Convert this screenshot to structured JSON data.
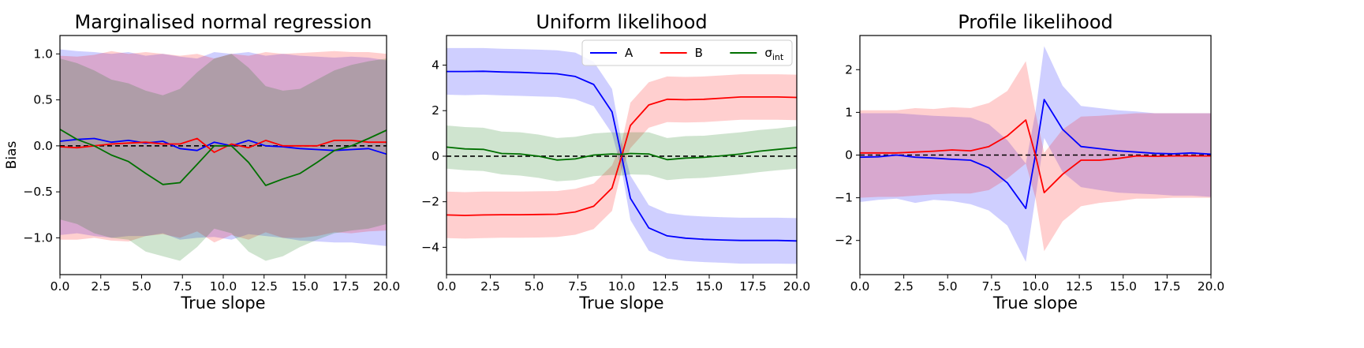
{
  "chart_data": [
    {
      "type": "line",
      "title": "Marginalised normal regression",
      "xlabel": "True slope",
      "ylabel": "Bias",
      "xlim": [
        0,
        20
      ],
      "ylim": [
        -1.4,
        1.2
      ],
      "xticks": [
        "0.0",
        "2.5",
        "5.0",
        "7.5",
        "10.0",
        "12.5",
        "15.0",
        "17.5",
        "20.0"
      ],
      "yticks": [
        "-1.0",
        "-0.5",
        "0.0",
        "0.5",
        "1.0"
      ],
      "legend": false,
      "reference_line": 0,
      "x": [
        0,
        1.05,
        2.1,
        3.15,
        4.2,
        5.25,
        6.3,
        7.35,
        8.4,
        9.45,
        10.5,
        11.55,
        12.6,
        13.65,
        14.7,
        15.75,
        16.8,
        17.85,
        18.9,
        20
      ],
      "series": [
        {
          "color": "#0000ff",
          "values": [
            0.05,
            0.07,
            0.08,
            0.04,
            0.06,
            0.03,
            0.05,
            -0.03,
            -0.05,
            0.04,
            0.0,
            0.06,
            0.0,
            -0.01,
            -0.03,
            -0.04,
            -0.05,
            -0.04,
            -0.03,
            -0.09
          ],
          "lower": [
            -0.97,
            -0.95,
            -0.98,
            -1.0,
            -0.98,
            -0.98,
            -0.95,
            -1.02,
            -1.0,
            -0.99,
            -1.02,
            -0.96,
            -0.98,
            -1.0,
            -1.03,
            -1.04,
            -1.05,
            -1.05,
            -1.07,
            -1.09
          ],
          "upper": [
            1.05,
            1.03,
            1.02,
            1.0,
            1.02,
            0.98,
            1.0,
            0.97,
            0.95,
            1.02,
            1.0,
            1.02,
            0.98,
            1.0,
            0.98,
            0.97,
            0.96,
            0.97,
            0.96,
            0.93
          ]
        },
        {
          "color": "#ff0000",
          "values": [
            -0.01,
            -0.02,
            0.0,
            0.02,
            0.03,
            0.04,
            0.02,
            0.02,
            0.08,
            -0.07,
            0.02,
            -0.02,
            0.06,
            0.0,
            0.0,
            0.0,
            0.06,
            0.06,
            0.04,
            0.04
          ],
          "lower": [
            -1.02,
            -1.02,
            -1.0,
            -1.03,
            -1.04,
            -0.98,
            -0.96,
            -1.0,
            -0.93,
            -1.05,
            -0.97,
            -1.02,
            -0.94,
            -1.0,
            -1.0,
            -0.98,
            -0.94,
            -0.95,
            -0.93,
            -0.92
          ],
          "upper": [
            0.98,
            0.97,
            0.99,
            1.03,
            1.0,
            1.02,
            1.0,
            0.98,
            1.0,
            0.95,
            1.0,
            0.98,
            1.02,
            1.0,
            1.01,
            1.02,
            1.03,
            1.02,
            1.02,
            1.0
          ]
        },
        {
          "color": "#007000",
          "values": [
            0.18,
            0.07,
            0.0,
            -0.1,
            -0.17,
            -0.3,
            -0.42,
            -0.4,
            -0.2,
            0.0,
            0.0,
            -0.18,
            -0.43,
            -0.36,
            -0.3,
            -0.18,
            -0.05,
            0.0,
            0.08,
            0.17
          ],
          "lower": [
            -0.8,
            -0.85,
            -0.95,
            -1.0,
            -1.02,
            -1.15,
            -1.2,
            -1.25,
            -1.1,
            -0.9,
            -0.95,
            -1.15,
            -1.25,
            -1.2,
            -1.1,
            -1.02,
            -0.95,
            -0.92,
            -0.9,
            -0.85
          ],
          "upper": [
            0.95,
            0.9,
            0.82,
            0.72,
            0.68,
            0.6,
            0.55,
            0.62,
            0.8,
            0.95,
            1.0,
            0.85,
            0.65,
            0.6,
            0.62,
            0.72,
            0.82,
            0.88,
            0.92,
            0.95
          ]
        }
      ]
    },
    {
      "type": "line",
      "title": "Uniform likelihood",
      "xlabel": "True slope",
      "ylabel": "",
      "xlim": [
        0,
        20
      ],
      "ylim": [
        -5.2,
        5.3
      ],
      "xticks": [
        "0.0",
        "2.5",
        "5.0",
        "7.5",
        "10.0",
        "12.5",
        "15.0",
        "17.5",
        "20.0"
      ],
      "yticks": [
        "-4",
        "-2",
        "0",
        "2",
        "4"
      ],
      "legend": true,
      "legend_position": "top-right",
      "reference_line": 0,
      "x": [
        0,
        1.05,
        2.1,
        3.15,
        4.2,
        5.25,
        6.3,
        7.35,
        8.4,
        9.45,
        10.0,
        10.5,
        11.55,
        12.6,
        13.65,
        14.7,
        15.75,
        16.8,
        17.85,
        18.9,
        20
      ],
      "series": [
        {
          "name": "A",
          "color": "#0000ff",
          "values": [
            3.72,
            3.72,
            3.73,
            3.7,
            3.68,
            3.65,
            3.62,
            3.5,
            3.15,
            1.95,
            0.0,
            -1.85,
            -3.15,
            -3.5,
            -3.6,
            -3.65,
            -3.68,
            -3.7,
            -3.7,
            -3.7,
            -3.72
          ],
          "lower": [
            2.7,
            2.68,
            2.7,
            2.67,
            2.65,
            2.62,
            2.6,
            2.5,
            2.2,
            1.0,
            -0.6,
            -2.8,
            -4.15,
            -4.5,
            -4.6,
            -4.65,
            -4.68,
            -4.72,
            -4.72,
            -4.72,
            -4.73
          ],
          "upper": [
            4.75,
            4.75,
            4.75,
            4.72,
            4.7,
            4.68,
            4.65,
            4.55,
            4.15,
            2.95,
            0.6,
            -0.85,
            -2.15,
            -2.5,
            -2.6,
            -2.65,
            -2.68,
            -2.7,
            -2.7,
            -2.7,
            -2.72
          ]
        },
        {
          "name": "B",
          "color": "#ff0000",
          "values": [
            -2.58,
            -2.6,
            -2.58,
            -2.57,
            -2.57,
            -2.56,
            -2.55,
            -2.45,
            -2.2,
            -1.4,
            0.0,
            1.35,
            2.25,
            2.5,
            2.48,
            2.5,
            2.55,
            2.6,
            2.6,
            2.6,
            2.58
          ],
          "lower": [
            -3.6,
            -3.62,
            -3.6,
            -3.58,
            -3.58,
            -3.57,
            -3.55,
            -3.45,
            -3.2,
            -2.4,
            -0.6,
            0.35,
            1.25,
            1.5,
            1.48,
            1.5,
            1.55,
            1.6,
            1.6,
            1.6,
            1.58
          ],
          "upper": [
            -1.55,
            -1.58,
            -1.55,
            -1.55,
            -1.55,
            -1.54,
            -1.53,
            -1.43,
            -1.2,
            -0.4,
            0.6,
            2.35,
            3.25,
            3.5,
            3.48,
            3.5,
            3.55,
            3.6,
            3.6,
            3.6,
            3.58
          ]
        },
        {
          "name": "σint",
          "color": "#007000",
          "values": [
            0.4,
            0.32,
            0.3,
            0.12,
            0.1,
            0.0,
            -0.17,
            -0.12,
            0.05,
            0.1,
            0.08,
            0.12,
            0.1,
            -0.15,
            -0.08,
            -0.05,
            0.02,
            0.1,
            0.22,
            0.3,
            0.38
          ],
          "lower": [
            -0.55,
            -0.62,
            -0.65,
            -0.8,
            -0.85,
            -0.95,
            -1.1,
            -1.05,
            -0.88,
            -0.82,
            -0.85,
            -0.8,
            -0.82,
            -1.05,
            -0.98,
            -0.95,
            -0.88,
            -0.8,
            -0.7,
            -0.62,
            -0.55
          ],
          "upper": [
            1.35,
            1.28,
            1.25,
            1.08,
            1.05,
            0.95,
            0.8,
            0.85,
            1.0,
            1.05,
            1.02,
            1.05,
            1.05,
            0.8,
            0.88,
            0.9,
            0.98,
            1.05,
            1.15,
            1.22,
            1.32
          ]
        }
      ]
    },
    {
      "type": "line",
      "title": "Profile likelihood",
      "xlabel": "True slope",
      "ylabel": "",
      "xlim": [
        0,
        20
      ],
      "ylim": [
        -2.8,
        2.8
      ],
      "xticks": [
        "0.0",
        "2.5",
        "5.0",
        "7.5",
        "10.0",
        "12.5",
        "15.0",
        "17.5",
        "20.0"
      ],
      "yticks": [
        "-2",
        "-1",
        "0",
        "1",
        "2"
      ],
      "legend": false,
      "reference_line": 0,
      "x": [
        0,
        1.05,
        2.1,
        3.15,
        4.2,
        5.25,
        6.3,
        7.35,
        8.4,
        9.45,
        10.0,
        10.5,
        11.55,
        12.6,
        13.65,
        14.7,
        15.75,
        16.8,
        17.85,
        18.9,
        20
      ],
      "series": [
        {
          "color": "#0000ff",
          "values": [
            -0.05,
            -0.04,
            0.0,
            -0.05,
            -0.07,
            -0.1,
            -0.12,
            -0.3,
            -0.65,
            -1.25,
            0.0,
            1.3,
            0.6,
            0.2,
            0.15,
            0.1,
            0.07,
            0.04,
            0.03,
            0.05,
            0.02
          ],
          "lower": [
            -1.1,
            -1.05,
            -1.02,
            -1.12,
            -1.05,
            -1.08,
            -1.15,
            -1.3,
            -1.65,
            -2.5,
            -1.0,
            0.4,
            -0.4,
            -0.75,
            -0.82,
            -0.88,
            -0.9,
            -0.92,
            -0.95,
            -0.95,
            -0.98
          ],
          "upper": [
            0.98,
            0.98,
            0.98,
            0.95,
            0.92,
            0.9,
            0.88,
            0.72,
            0.35,
            -0.2,
            1.0,
            2.55,
            1.62,
            1.15,
            1.1,
            1.05,
            1.02,
            0.98,
            0.98,
            0.98,
            0.98
          ]
        },
        {
          "color": "#ff0000",
          "values": [
            0.05,
            0.05,
            0.05,
            0.07,
            0.09,
            0.12,
            0.1,
            0.2,
            0.45,
            0.82,
            0.0,
            -0.88,
            -0.45,
            -0.12,
            -0.12,
            -0.08,
            -0.02,
            -0.03,
            -0.02,
            -0.02,
            -0.02
          ],
          "lower": [
            -1.0,
            -0.98,
            -0.98,
            -0.95,
            -0.92,
            -0.9,
            -0.9,
            -0.82,
            -0.55,
            -0.2,
            -1.0,
            -2.25,
            -1.55,
            -1.2,
            -1.12,
            -1.08,
            -1.02,
            -1.02,
            -1.0,
            -1.0,
            -1.0
          ],
          "upper": [
            1.05,
            1.05,
            1.05,
            1.1,
            1.08,
            1.12,
            1.1,
            1.22,
            1.5,
            2.2,
            1.0,
            0.05,
            0.6,
            0.9,
            0.92,
            0.95,
            0.98,
            0.98,
            0.98,
            0.98,
            0.98
          ]
        }
      ]
    }
  ]
}
